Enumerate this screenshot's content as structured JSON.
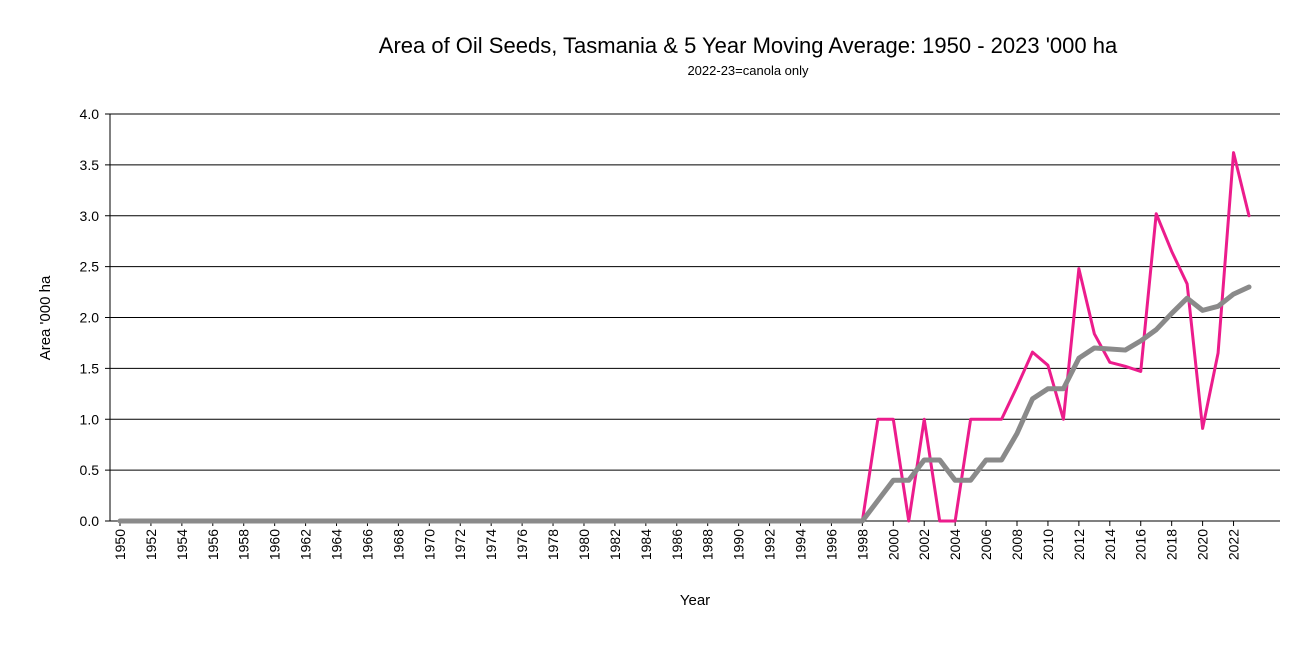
{
  "chart_data": {
    "type": "line",
    "title": "Area of Oil Seeds, Tasmania & 5 Year Moving Average: 1950 - 2023 '000 ha",
    "subtitle": "2022-23=canola only",
    "xlabel": "Year",
    "ylabel": "Area '000 ha",
    "ylim": [
      0,
      4
    ],
    "yticks": [
      "0.0",
      "0.5",
      "1.0",
      "1.5",
      "2.0",
      "2.5",
      "3.0",
      "3.5",
      "4.0"
    ],
    "grid": true,
    "legend": "none",
    "x": [
      1950,
      1951,
      1952,
      1953,
      1954,
      1955,
      1956,
      1957,
      1958,
      1959,
      1960,
      1961,
      1962,
      1963,
      1964,
      1965,
      1966,
      1967,
      1968,
      1969,
      1970,
      1971,
      1972,
      1973,
      1974,
      1975,
      1976,
      1977,
      1978,
      1979,
      1980,
      1981,
      1982,
      1983,
      1984,
      1985,
      1986,
      1987,
      1988,
      1989,
      1990,
      1991,
      1992,
      1993,
      1994,
      1995,
      1996,
      1997,
      1998,
      1999,
      2000,
      2001,
      2002,
      2003,
      2004,
      2005,
      2006,
      2007,
      2008,
      2009,
      2010,
      2011,
      2012,
      2013,
      2014,
      2015,
      2016,
      2017,
      2018,
      2019,
      2020,
      2021,
      2022,
      2023
    ],
    "xtick_labels": [
      "1950",
      "1952",
      "1954",
      "1956",
      "1958",
      "1960",
      "1962",
      "1964",
      "1966",
      "1968",
      "1970",
      "1972",
      "1974",
      "1976",
      "1978",
      "1980",
      "1982",
      "1984",
      "1986",
      "1988",
      "1990",
      "1992",
      "1994",
      "1996",
      "1998",
      "2000",
      "2002",
      "2004",
      "2006",
      "2008",
      "2010",
      "2012",
      "2014",
      "2016",
      "2018",
      "2020",
      "2022"
    ],
    "series": [
      {
        "name": "Area of Oil Seeds",
        "color": "#ec1c8c",
        "values": [
          0,
          0,
          0,
          0,
          0,
          0,
          0,
          0,
          0,
          0,
          0,
          0,
          0,
          0,
          0,
          0,
          0,
          0,
          0,
          0,
          0,
          0,
          0,
          0,
          0,
          0,
          0,
          0,
          0,
          0,
          0,
          0,
          0,
          0,
          0,
          0,
          0,
          0,
          0,
          0,
          0,
          0,
          0,
          0,
          0,
          0,
          0,
          0,
          0,
          1.0,
          1.0,
          0,
          1.0,
          0,
          0,
          1.0,
          1.0,
          1.0,
          1.32,
          1.66,
          1.53,
          1.0,
          2.48,
          1.84,
          1.56,
          1.52,
          1.47,
          3.02,
          2.65,
          2.33,
          0.91,
          1.65,
          3.62,
          3.0
        ]
      },
      {
        "name": "5 Year Moving Average",
        "color": "#8a8a8a",
        "values": [
          0,
          0,
          0,
          0,
          0,
          0,
          0,
          0,
          0,
          0,
          0,
          0,
          0,
          0,
          0,
          0,
          0,
          0,
          0,
          0,
          0,
          0,
          0,
          0,
          0,
          0,
          0,
          0,
          0,
          0,
          0,
          0,
          0,
          0,
          0,
          0,
          0,
          0,
          0,
          0,
          0,
          0,
          0,
          0,
          0,
          0,
          0,
          0,
          0,
          0.2,
          0.4,
          0.4,
          0.6,
          0.6,
          0.4,
          0.4,
          0.6,
          0.6,
          0.86,
          1.2,
          1.3,
          1.3,
          1.6,
          1.7,
          1.69,
          1.68,
          1.77,
          1.88,
          2.04,
          2.19,
          2.07,
          2.11,
          2.23,
          2.3
        ]
      }
    ]
  }
}
